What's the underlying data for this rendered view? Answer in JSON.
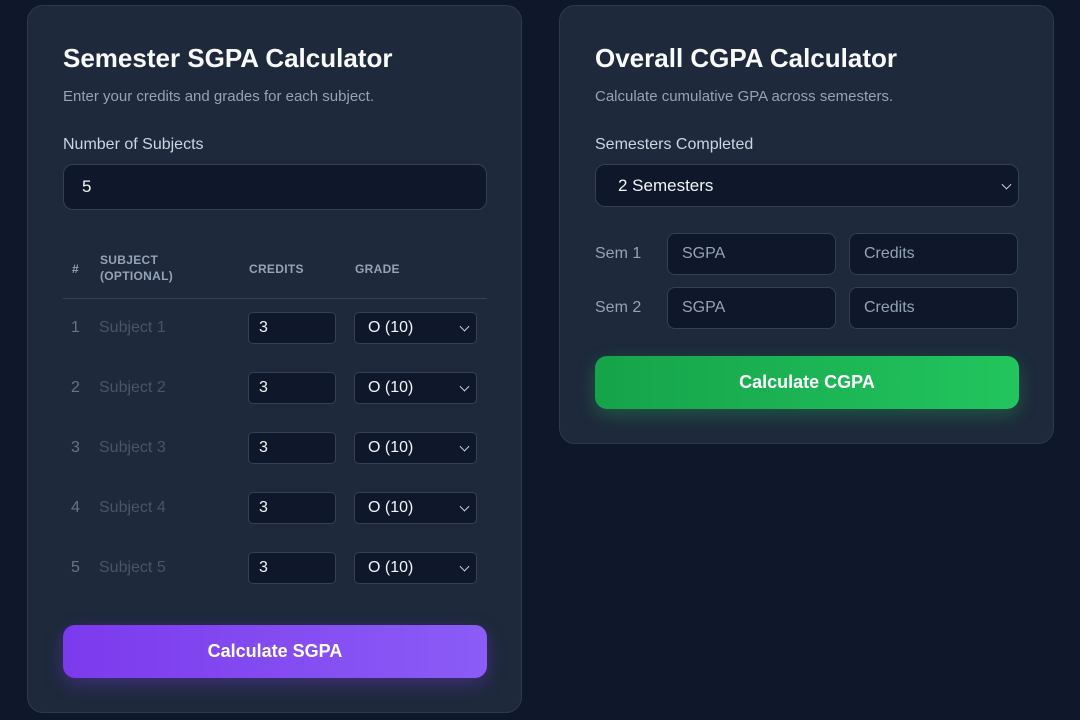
{
  "sgpa": {
    "title": "Semester SGPA Calculator",
    "subtitle": "Enter your credits and grades for each subject.",
    "count_label": "Number of Subjects",
    "count_value": "5",
    "headers": {
      "num": "#",
      "subject": "SUBJECT (OPTIONAL)",
      "credits": "CREDITS",
      "grade": "GRADE"
    },
    "rows": [
      {
        "num": "1",
        "subject_placeholder": "Subject 1",
        "credits": "3",
        "grade": "O (10)"
      },
      {
        "num": "2",
        "subject_placeholder": "Subject 2",
        "credits": "3",
        "grade": "O (10)"
      },
      {
        "num": "3",
        "subject_placeholder": "Subject 3",
        "credits": "3",
        "grade": "O (10)"
      },
      {
        "num": "4",
        "subject_placeholder": "Subject 4",
        "credits": "3",
        "grade": "O (10)"
      },
      {
        "num": "5",
        "subject_placeholder": "Subject 5",
        "credits": "3",
        "grade": "O (10)"
      }
    ],
    "button": "Calculate SGPA",
    "button_color": "#7c3aed"
  },
  "cgpa": {
    "title": "Overall CGPA Calculator",
    "subtitle": "Calculate cumulative GPA across semesters.",
    "count_label": "Semesters Completed",
    "count_value": "2 Semesters",
    "semesters": [
      {
        "label": "Sem 1",
        "sgpa_placeholder": "SGPA",
        "credits_placeholder": "Credits"
      },
      {
        "label": "Sem 2",
        "sgpa_placeholder": "SGPA",
        "credits_placeholder": "Credits"
      }
    ],
    "button": "Calculate CGPA",
    "button_color": "#22c55e"
  }
}
